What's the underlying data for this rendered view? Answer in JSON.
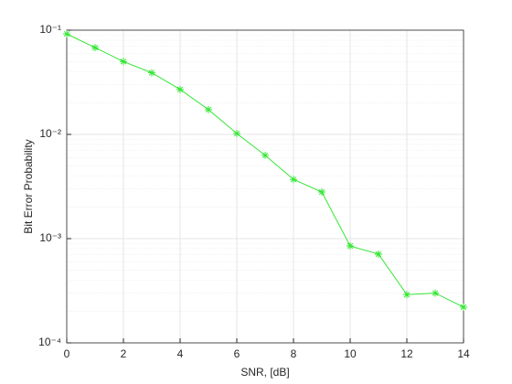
{
  "chart_data": {
    "type": "line",
    "xlabel": "SNR, [dB]",
    "ylabel": "Bit Error Probability",
    "x": [
      0,
      1,
      2,
      3,
      4,
      5,
      6,
      7,
      8,
      9,
      10,
      11,
      12,
      13,
      14
    ],
    "series": [
      {
        "color": "#33e633",
        "marker": "asterisk",
        "values": [
          0.092,
          0.068,
          0.05,
          0.039,
          0.027,
          0.0173,
          0.0102,
          0.0063,
          0.0037,
          0.0028,
          0.00085,
          0.00071,
          0.00029,
          0.0003,
          0.00022
        ]
      }
    ],
    "xlim": [
      0,
      14
    ],
    "xticks": [
      0,
      2,
      4,
      6,
      8,
      10,
      12,
      14
    ],
    "ylim": [
      0.0001,
      0.1
    ],
    "ylog": true,
    "yticks": [
      {
        "value": 0.0001,
        "label": "10⁻⁴"
      },
      {
        "value": 0.001,
        "label": "10⁻³"
      },
      {
        "value": 0.01,
        "label": "10⁻²"
      },
      {
        "value": 0.1,
        "label": "10⁻¹"
      }
    ],
    "grid": true,
    "minor_grid": true
  }
}
